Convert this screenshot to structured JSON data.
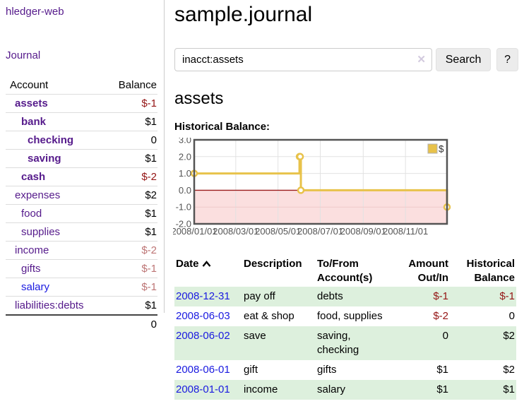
{
  "app": {
    "title": "hledger-web"
  },
  "sidebar": {
    "journal_label": "Journal",
    "accounts": {
      "headers": {
        "account": "Account",
        "balance": "Balance"
      },
      "rows": [
        {
          "name": "assets",
          "depth": 1,
          "bold": true,
          "balance": "$-1",
          "balance_style": "neg-strong"
        },
        {
          "name": "bank",
          "depth": 2,
          "bold": true,
          "balance": "$1",
          "balance_style": "pos"
        },
        {
          "name": "checking",
          "depth": 3,
          "bold": true,
          "balance": "0",
          "balance_style": "pos"
        },
        {
          "name": "saving",
          "depth": 3,
          "bold": true,
          "balance": "$1",
          "balance_style": "pos"
        },
        {
          "name": "cash",
          "depth": 2,
          "bold": true,
          "balance": "$-2",
          "balance_style": "neg-strong"
        },
        {
          "name": "expenses",
          "depth": 1,
          "bold": false,
          "balance": "$2",
          "balance_style": "pos"
        },
        {
          "name": "food",
          "depth": 2,
          "bold": false,
          "balance": "$1",
          "balance_style": "pos"
        },
        {
          "name": "supplies",
          "depth": 2,
          "bold": false,
          "balance": "$1",
          "balance_style": "pos"
        },
        {
          "name": "income",
          "depth": 1,
          "bold": false,
          "balance": "$-2",
          "balance_style": "neg-faded"
        },
        {
          "name": "gifts",
          "depth": 2,
          "bold": false,
          "balance": "$-1",
          "balance_style": "neg-faded"
        },
        {
          "name": "salary",
          "depth": 2,
          "bold": false,
          "balance": "$-1",
          "balance_style": "neg-faded",
          "link_color": "blue"
        },
        {
          "name": "liabilities:debts",
          "depth": 1,
          "bold": false,
          "balance": "$1",
          "balance_style": "pos"
        }
      ],
      "total": "0"
    }
  },
  "main": {
    "title": "sample.journal",
    "search": {
      "value": "inacct:assets",
      "clear_icon": "✕",
      "button_label": "Search",
      "help_label": "?"
    },
    "account_heading": "assets",
    "chart_label": "Historical Balance:"
  },
  "chart_data": {
    "type": "line",
    "step": true,
    "title": "Historical Balance:",
    "series": [
      {
        "name": "$",
        "color": "#e8c24a",
        "points": [
          [
            "2008-01-01",
            1
          ],
          [
            "2008-06-01",
            2
          ],
          [
            "2008-06-02",
            2
          ],
          [
            "2008-06-03",
            0
          ],
          [
            "2008-12-31",
            -1
          ]
        ]
      }
    ],
    "x_ticks": [
      "2008/01/01",
      "2008/03/01",
      "2008/05/01",
      "2008/07/01",
      "2008/09/01",
      "2008/11/01"
    ],
    "y_ticks": [
      3.0,
      2.0,
      1.0,
      0.0,
      -1.0,
      -2.0
    ],
    "y_tick_labels": [
      "3.0",
      "2.0",
      "1.0",
      "0.0",
      "-1.0",
      "-2.0"
    ],
    "xlim": [
      "2008-01-01",
      "2008-12-31"
    ],
    "ylim": [
      -2,
      3
    ],
    "grid": true,
    "legend": {
      "position": "top-right",
      "label": "$"
    },
    "negative_region_color": "#fbdfdf",
    "zero_line_color": "#9b1c1c"
  },
  "register": {
    "headers": {
      "date": "Date",
      "description": "Description",
      "accounts": "To/From Account(s)",
      "amount": "Amount Out/In",
      "balance": "Historical Balance"
    },
    "rows": [
      {
        "date": "2008-12-31",
        "description": "pay off",
        "accounts": "debts",
        "amount": "$-1",
        "amount_neg": true,
        "balance": "$-1",
        "balance_neg": true
      },
      {
        "date": "2008-06-03",
        "description": "eat & shop",
        "accounts": "food, supplies",
        "amount": "$-2",
        "amount_neg": true,
        "balance": "0",
        "balance_neg": false
      },
      {
        "date": "2008-06-02",
        "description": "save",
        "accounts": "saving, checking",
        "amount": "0",
        "amount_neg": false,
        "balance": "$2",
        "balance_neg": false
      },
      {
        "date": "2008-06-01",
        "description": "gift",
        "accounts": "gifts",
        "amount": "$1",
        "amount_neg": false,
        "balance": "$2",
        "balance_neg": false
      },
      {
        "date": "2008-01-01",
        "description": "income",
        "accounts": "salary",
        "amount": "$1",
        "amount_neg": false,
        "balance": "$1",
        "balance_neg": false
      }
    ]
  }
}
